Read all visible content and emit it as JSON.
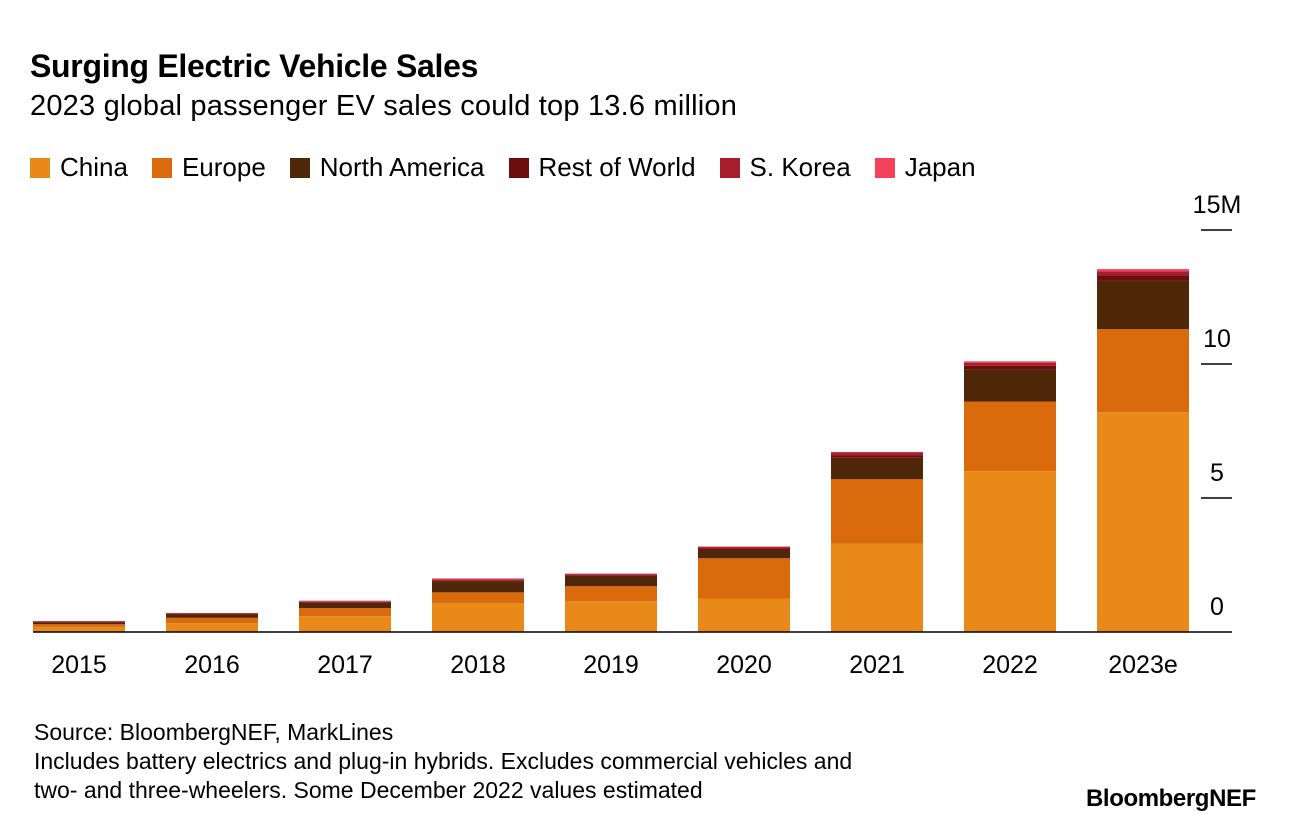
{
  "header": {
    "title": "Surging Electric Vehicle Sales",
    "subtitle": "2023 global passenger EV sales could top 13.6 million"
  },
  "footer": {
    "source": "Source: BloombergNEF, MarkLines",
    "note_line1": "Includes battery electrics and plug-in hybrids. Excludes commercial vehicles and",
    "note_line2": "two- and three-wheelers. Some December 2022 values estimated",
    "brand": "BloombergNEF"
  },
  "chart_data": {
    "type": "bar",
    "stacked": true,
    "title": "Surging Electric Vehicle Sales",
    "subtitle": "2023 global passenger EV sales could top 13.6 million",
    "categories": [
      "2015",
      "2016",
      "2017",
      "2018",
      "2019",
      "2020",
      "2021",
      "2022",
      "2023e"
    ],
    "series": [
      {
        "name": "China",
        "color": "#E8891A",
        "values": [
          0.19,
          0.33,
          0.59,
          1.08,
          1.15,
          1.25,
          3.3,
          6.0,
          8.2
        ]
      },
      {
        "name": "Europe",
        "color": "#DA6B0C",
        "values": [
          0.1,
          0.2,
          0.3,
          0.4,
          0.56,
          1.5,
          2.4,
          2.6,
          3.1
        ]
      },
      {
        "name": "North America",
        "color": "#4F2608",
        "values": [
          0.07,
          0.12,
          0.2,
          0.4,
          0.36,
          0.31,
          0.8,
          1.2,
          1.8
        ]
      },
      {
        "name": "Rest of World",
        "color": "#6D0E0E",
        "values": [
          0.02,
          0.03,
          0.04,
          0.05,
          0.05,
          0.06,
          0.1,
          0.13,
          0.2
        ]
      },
      {
        "name": "S. Korea",
        "color": "#A61E2B",
        "values": [
          0.01,
          0.01,
          0.02,
          0.04,
          0.04,
          0.05,
          0.1,
          0.12,
          0.15
        ]
      },
      {
        "name": "Japan",
        "color": "#F4415B",
        "values": [
          0.02,
          0.02,
          0.02,
          0.03,
          0.02,
          0.02,
          0.02,
          0.05,
          0.09
        ]
      }
    ],
    "ylim": [
      0,
      15
    ],
    "yticks": [
      0,
      5,
      10,
      15
    ],
    "ytick_labels": [
      "0",
      "5",
      "10",
      "15M"
    ],
    "axis_side": "right",
    "grid": false,
    "legend_position": "top-left"
  }
}
